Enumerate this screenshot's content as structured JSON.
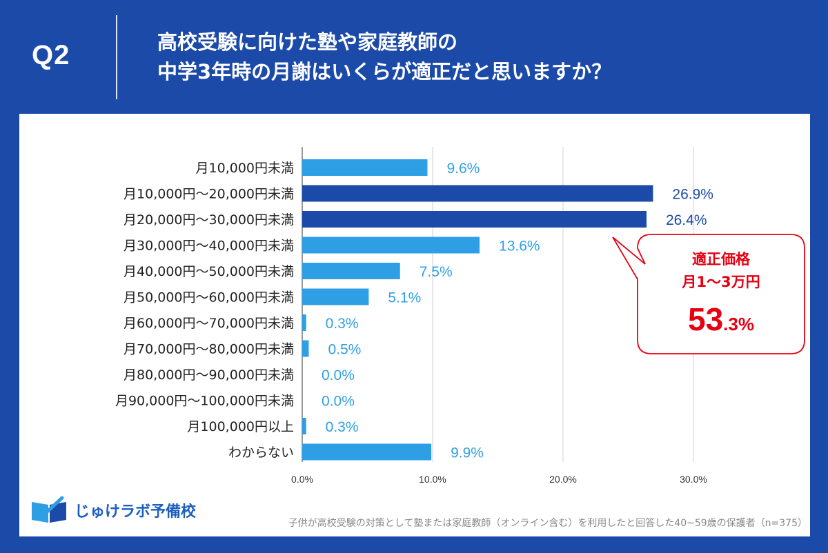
{
  "header": {
    "q_label": "Q2",
    "title_line1": "高校受験に向けた塾や家庭教師の",
    "title_line2": "中学3年時の月謝はいくらが適正だと思いますか？"
  },
  "callout": {
    "line1": "適正価格",
    "line2": "月1〜3万円",
    "value_big": "53",
    "value_small": ".3%",
    "color": "#e60012"
  },
  "brand": {
    "name": "じゅけラボ予備校"
  },
  "footnote": "子供が高校受験の対策として塾または家庭教師（オンライン含む）を利用したと回答した40~59歳の保護者（n=375）",
  "colors": {
    "bar_light": "#2e9fe5",
    "bar_dark": "#1b4aa8",
    "background": "#1b4aa8"
  },
  "chart_data": {
    "type": "bar",
    "orientation": "horizontal",
    "categories": [
      "月10,000円未満",
      "月10,000円〜20,000円未満",
      "月20,000円〜30,000円未満",
      "月30,000円〜40,000円未満",
      "月40,000円〜50,000円未満",
      "月50,000円〜60,000円未満",
      "月60,000円〜70,000円未満",
      "月70,000円〜80,000円未満",
      "月80,000円〜90,000円未満",
      "月90,000円〜100,000円未満",
      "月100,000円以上",
      "わからない"
    ],
    "values": [
      9.6,
      26.9,
      26.4,
      13.6,
      7.5,
      5.1,
      0.3,
      0.5,
      0.0,
      0.0,
      0.3,
      9.9
    ],
    "value_labels": [
      "9.6%",
      "26.9%",
      "26.4%",
      "13.6%",
      "7.5%",
      "5.1%",
      "0.3%",
      "0.5%",
      "0.0%",
      "0.0%",
      "0.3%",
      "9.9%"
    ],
    "highlighted": [
      false,
      true,
      true,
      false,
      false,
      false,
      false,
      false,
      false,
      false,
      false,
      false
    ],
    "x_ticks": [
      0,
      10,
      20,
      30
    ],
    "x_tick_labels": [
      "0.0%",
      "10.0%",
      "20.0%",
      "30.0%"
    ],
    "xlim": [
      0,
      33
    ],
    "grid": true
  }
}
